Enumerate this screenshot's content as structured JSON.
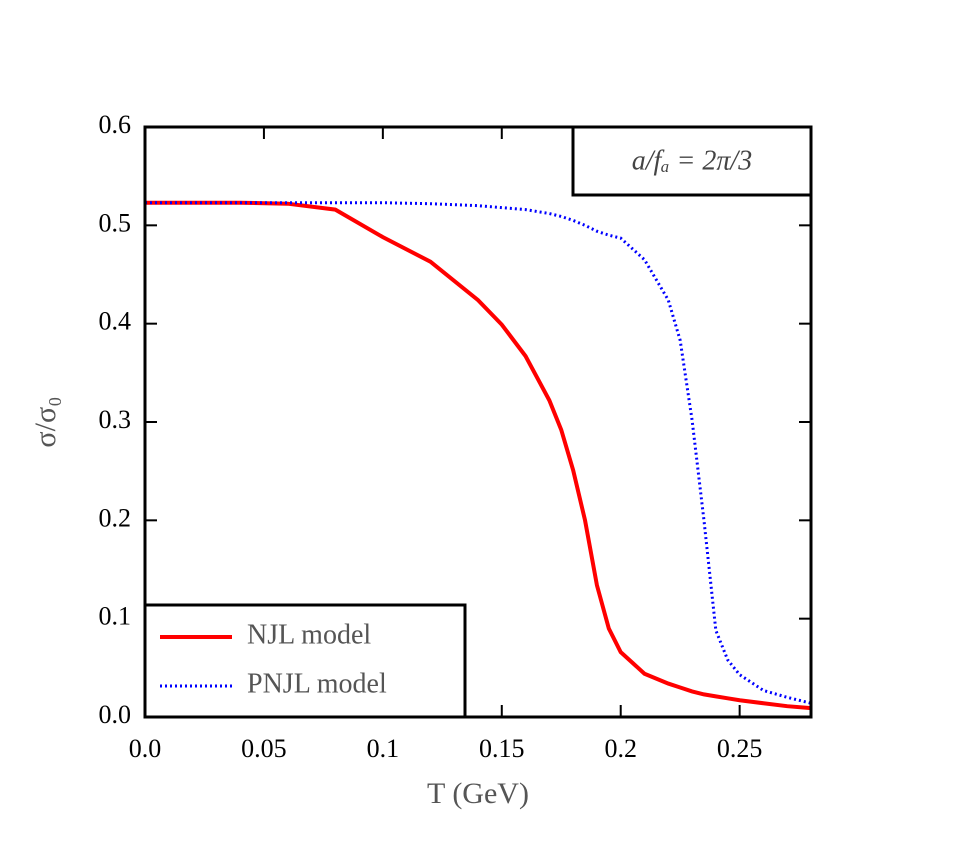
{
  "chart_data": {
    "type": "line",
    "x_label": "T (GeV)",
    "y_label": "σ/σ₀",
    "annotation": "a/fₐ = 2π/3",
    "x": [
      0,
      0.02,
      0.04,
      0.06,
      0.08,
      0.1,
      0.12,
      0.14,
      0.15,
      0.16,
      0.17,
      0.175,
      0.18,
      0.185,
      0.19,
      0.195,
      0.2,
      0.21,
      0.22,
      0.225,
      0.23,
      0.235,
      0.24,
      0.245,
      0.25,
      0.26,
      0.27,
      0.28
    ],
    "series": [
      {
        "name": "NJL model",
        "color": "#ff0000",
        "dash": "solid",
        "values": [
          0.523,
          0.523,
          0.523,
          0.522,
          0.516,
          0.488,
          0.463,
          0.424,
          0.399,
          0.367,
          0.322,
          0.292,
          0.251,
          0.2,
          0.134,
          0.09,
          0.066,
          0.044,
          0.034,
          0.03,
          0.026,
          0.023,
          0.021,
          0.019,
          0.017,
          0.014,
          0.011,
          0.009
        ]
      },
      {
        "name": "PNJL model",
        "color": "#0000ff",
        "dash": "dotted",
        "values": [
          0.523,
          0.523,
          0.523,
          0.523,
          0.523,
          0.523,
          0.522,
          0.52,
          0.518,
          0.516,
          0.512,
          0.509,
          0.505,
          0.5,
          0.494,
          0.49,
          0.487,
          0.465,
          0.424,
          0.383,
          0.302,
          0.2,
          0.088,
          0.058,
          0.043,
          0.027,
          0.02,
          0.014
        ]
      }
    ],
    "xlim": [
      0,
      0.28
    ],
    "ylim": [
      0,
      0.6
    ],
    "xticks": [
      {
        "value": 0,
        "label": "0.0"
      },
      0.05,
      0.1,
      0.15,
      0.2,
      0.25
    ],
    "yticks": [
      {
        "value": 0,
        "label": "0.0"
      },
      0.1,
      0.2,
      0.3,
      0.4,
      0.5,
      0.6
    ],
    "legend": "lower left"
  }
}
